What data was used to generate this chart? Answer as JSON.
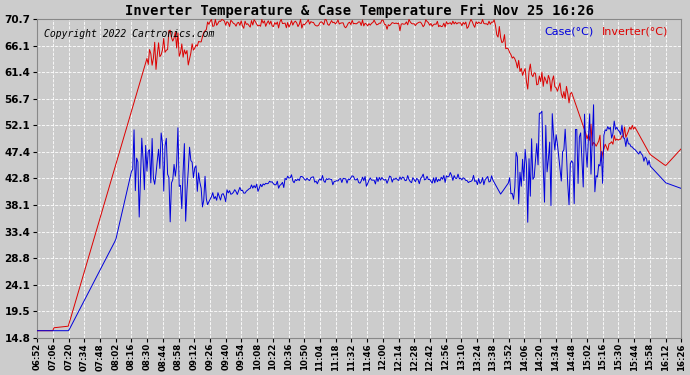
{
  "title": "Inverter Temperature & Case Temperature Fri Nov 25 16:26",
  "copyright": "Copyright 2022 Cartronics.com",
  "legend_case": "Case(°C)",
  "legend_inverter": "Inverter(°C)",
  "yticks": [
    14.8,
    19.5,
    24.1,
    28.8,
    33.4,
    38.1,
    42.8,
    47.4,
    52.1,
    56.7,
    61.4,
    66.1,
    70.7
  ],
  "ymin": 14.8,
  "ymax": 70.7,
  "bg_color": "#cccccc",
  "plot_bg_color": "#cccccc",
  "grid_color": "#ffffff",
  "case_color": "#0000dd",
  "inverter_color": "#dd0000",
  "title_color": "#000000",
  "copyright_color": "#000000",
  "xtick_labels": [
    "06:52",
    "07:06",
    "07:20",
    "07:34",
    "07:48",
    "08:02",
    "08:16",
    "08:30",
    "08:44",
    "08:58",
    "09:12",
    "09:26",
    "09:40",
    "09:54",
    "10:08",
    "10:22",
    "10:36",
    "10:50",
    "11:04",
    "11:18",
    "11:32",
    "11:46",
    "12:00",
    "12:14",
    "12:28",
    "12:42",
    "12:56",
    "13:10",
    "13:24",
    "13:38",
    "13:52",
    "14:06",
    "14:20",
    "14:34",
    "14:48",
    "15:02",
    "15:16",
    "15:30",
    "15:44",
    "15:58",
    "16:12",
    "16:26"
  ]
}
